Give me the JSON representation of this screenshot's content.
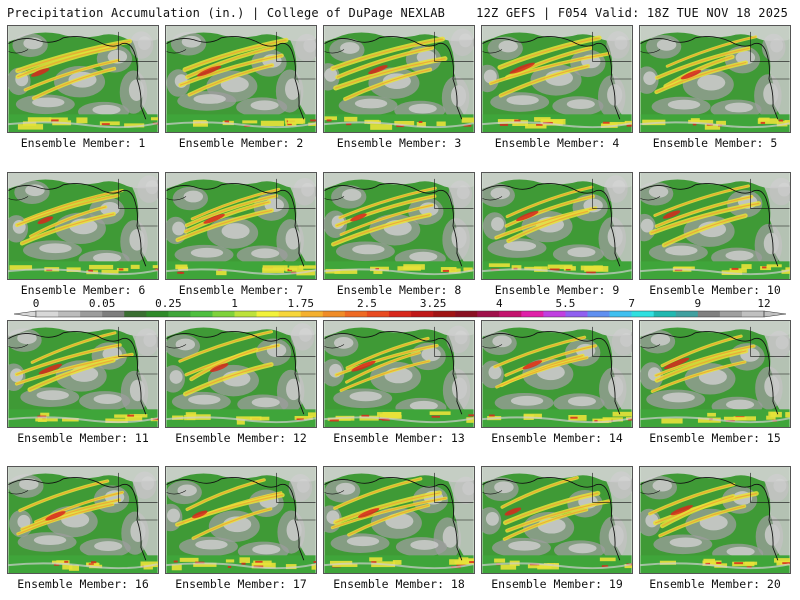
{
  "header": {
    "title": "Precipitation Accumulation (in.) | College of DuPage NEXLAB",
    "valid": "12Z GEFS | F054 Valid: 18Z TUE NOV 18 2025"
  },
  "members": [
    "Ensemble Member: 1",
    "Ensemble Member: 2",
    "Ensemble Member: 3",
    "Ensemble Member: 4",
    "Ensemble Member: 5",
    "Ensemble Member: 6",
    "Ensemble Member: 7",
    "Ensemble Member: 8",
    "Ensemble Member: 9",
    "Ensemble Member: 10",
    "Ensemble Member: 11",
    "Ensemble Member: 12",
    "Ensemble Member: 13",
    "Ensemble Member: 14",
    "Ensemble Member: 15",
    "Ensemble Member: 16",
    "Ensemble Member: 17",
    "Ensemble Member: 18",
    "Ensemble Member: 19",
    "Ensemble Member: 20"
  ],
  "colorbar": {
    "labels": [
      "0",
      "0.05",
      "0.25",
      "1",
      "1.75",
      "2.5",
      "3.25",
      "4",
      "5.5",
      "7",
      "9",
      "12"
    ],
    "colors": [
      "#d8d8d8",
      "#bcbcbc",
      "#9c9c9c",
      "#7d7d7d",
      "#3a6e32",
      "#2f8a2a",
      "#3fa53a",
      "#4fbf3f",
      "#7fd23a",
      "#bde23a",
      "#f2f23a",
      "#f7d63a",
      "#f4b030",
      "#f08c28",
      "#ee6a24",
      "#e84a20",
      "#d8281c",
      "#c01818",
      "#a01414",
      "#8a1022",
      "#a0104a",
      "#c4146e",
      "#e020a8",
      "#c040e0",
      "#9060f0",
      "#6090f0",
      "#40c0f0",
      "#30e0e0",
      "#20b8b0",
      "#40a0a0",
      "#808080",
      "#a0a0a0",
      "#c0c0c0"
    ]
  }
}
